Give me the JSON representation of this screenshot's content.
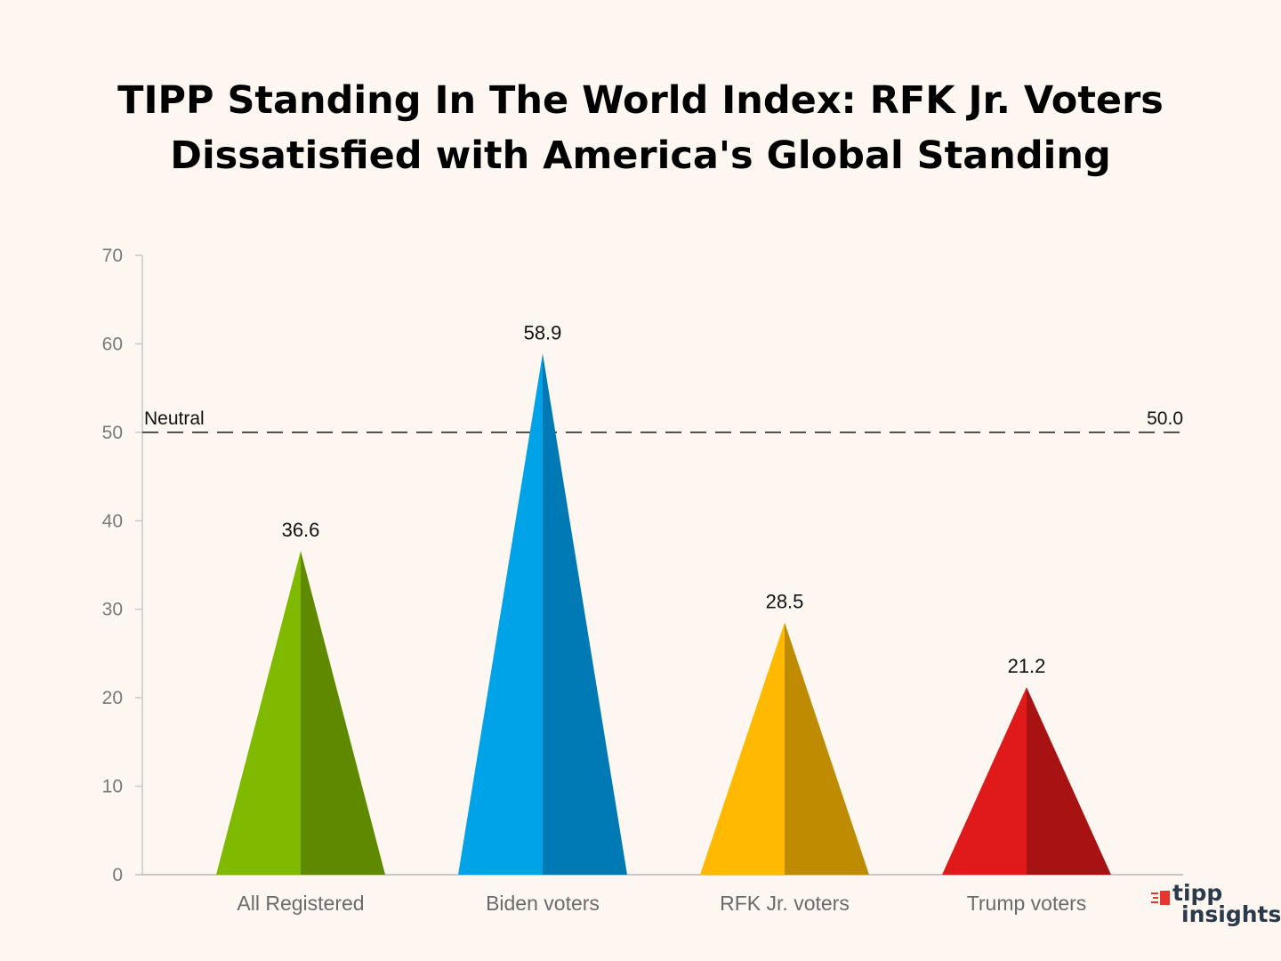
{
  "chart_data": {
    "type": "bar",
    "title_lines": [
      "TIPP Standing In The World Index: RFK Jr. Voters",
      "Dissatisfied with America's Global Standing"
    ],
    "categories": [
      "All Registered",
      "Biden voters",
      "RFK Jr. voters",
      "Trump voters"
    ],
    "values": [
      36.6,
      58.9,
      28.5,
      21.2
    ],
    "value_labels": [
      "36.6",
      "58.9",
      "28.5",
      "21.2"
    ],
    "colors_light": [
      "#7fba00",
      "#00a2e8",
      "#ffb900",
      "#e01a1a"
    ],
    "colors_dark": [
      "#5f8a00",
      "#007ab5",
      "#bf8b00",
      "#a81212"
    ],
    "ylim": [
      0,
      70
    ],
    "yticks": [
      0,
      10,
      20,
      30,
      40,
      50,
      60,
      70
    ],
    "ytick_labels": [
      "0",
      "10",
      "20",
      "30",
      "40",
      "50",
      "60",
      "70"
    ],
    "reference_line": {
      "value": 50,
      "label_left": "Neutral",
      "label_right": "50.0"
    },
    "xlabel": "",
    "ylabel": "",
    "grid": false
  },
  "brand": {
    "line1": "tipp",
    "line2": "insights"
  }
}
